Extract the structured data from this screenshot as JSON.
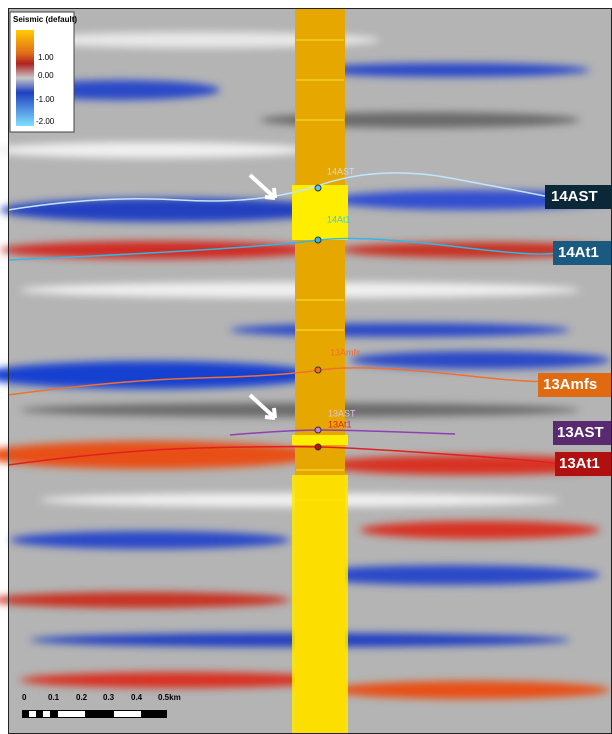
{
  "legend": {
    "title": "Seismic (default)",
    "ticks": [
      "1.00",
      "0.00",
      "-1.00",
      "-2.00"
    ]
  },
  "horizons": [
    {
      "label": "14AST",
      "well_label": "14AST"
    },
    {
      "label": "14At1",
      "well_label": "14At1"
    },
    {
      "label": "13Amfs",
      "well_label": "13Amfs"
    },
    {
      "label": "13AST",
      "well_label": "13AST"
    },
    {
      "label": "13At1",
      "well_label": "13At1"
    }
  ],
  "scale_bar": {
    "labels": [
      "0",
      "0.1",
      "0.2",
      "0.3",
      "0.4",
      "0.5km"
    ]
  }
}
